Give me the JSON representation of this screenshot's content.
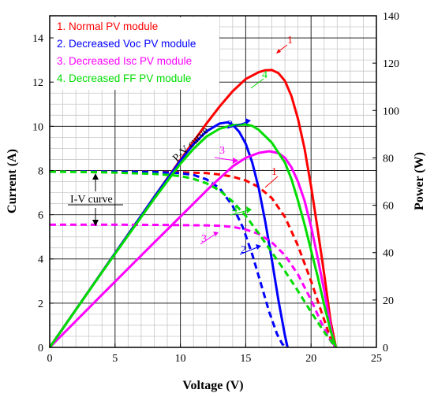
{
  "chart_data": {
    "type": "line",
    "xlabel": "Voltage (V)",
    "ylabel_left": "Current (A)",
    "ylabel_right": "Power (W)",
    "xlim": [
      0,
      25
    ],
    "ylim_left": [
      0,
      15
    ],
    "ylim_right": [
      0,
      140
    ],
    "x_ticks": [
      "0",
      "5",
      "10",
      "15",
      "20",
      "25"
    ],
    "y_left_ticks": [
      "0",
      "2",
      "4",
      "6",
      "8",
      "10",
      "12",
      "14"
    ],
    "y_right_ticks": [
      "0",
      "20",
      "40",
      "60",
      "80",
      "100",
      "120",
      "140"
    ],
    "grid": true,
    "legend_position": "top-left",
    "legend": [
      {
        "label": "1. Normal PV module",
        "color": "#ff0000"
      },
      {
        "label": "2. Decreased Voc PV module",
        "color": "#0000ff"
      },
      {
        "label": "3. Decreased Isc PV module",
        "color": "#ff00ff"
      },
      {
        "label": "4. Decreased FF PV module",
        "color": "#00dd00"
      }
    ],
    "annotations": {
      "pv_curve": "P-V curve",
      "iv_curve": "I-V curve",
      "markers": [
        "1",
        "2",
        "3",
        "4"
      ]
    },
    "series": [
      {
        "curve": "I-V",
        "marker": "1",
        "color": "#ff0000",
        "points": [
          [
            0,
            7.95
          ],
          [
            4,
            7.95
          ],
          [
            8,
            7.94
          ],
          [
            10,
            7.92
          ],
          [
            12,
            7.88
          ],
          [
            13,
            7.82
          ],
          [
            14,
            7.72
          ],
          [
            15,
            7.55
          ],
          [
            16,
            7.25
          ],
          [
            17,
            6.75
          ],
          [
            18,
            5.9
          ],
          [
            19,
            4.6
          ],
          [
            20,
            3.0
          ],
          [
            20.8,
            1.6
          ],
          [
            21.5,
            0.4
          ],
          [
            21.9,
            0
          ]
        ]
      },
      {
        "curve": "P-V",
        "marker": "1",
        "color": "#ff0000",
        "points": [
          [
            0,
            0
          ],
          [
            4,
            31.8
          ],
          [
            8,
            63.5
          ],
          [
            10,
            79.2
          ],
          [
            12,
            94.5
          ],
          [
            13,
            101.7
          ],
          [
            14,
            108.1
          ],
          [
            15,
            113.3
          ],
          [
            16,
            116.2
          ],
          [
            16.5,
            117.0
          ],
          [
            17,
            117.1
          ],
          [
            17.5,
            115.8
          ],
          [
            18,
            112.5
          ],
          [
            18.5,
            106
          ],
          [
            19,
            96.5
          ],
          [
            19.5,
            84
          ],
          [
            20,
            68
          ],
          [
            20.5,
            50
          ],
          [
            21,
            31
          ],
          [
            21.5,
            11
          ],
          [
            21.9,
            0
          ]
        ]
      },
      {
        "curve": "I-V",
        "marker": "2",
        "color": "#0000ff",
        "points": [
          [
            0,
            7.95
          ],
          [
            4,
            7.95
          ],
          [
            8,
            7.93
          ],
          [
            10,
            7.88
          ],
          [
            11,
            7.8
          ],
          [
            12,
            7.6
          ],
          [
            13,
            7.2
          ],
          [
            14,
            6.4
          ],
          [
            14.8,
            5.4
          ],
          [
            15.5,
            4.2
          ],
          [
            16.2,
            2.8
          ],
          [
            16.8,
            1.6
          ],
          [
            17.4,
            0.6
          ],
          [
            17.8,
            0.15
          ],
          [
            18.1,
            0
          ]
        ]
      },
      {
        "curve": "P-V",
        "marker": "2",
        "color": "#0000ff",
        "points": [
          [
            0,
            0
          ],
          [
            4,
            31.8
          ],
          [
            8,
            63.5
          ],
          [
            10,
            78.8
          ],
          [
            11,
            85.8
          ],
          [
            12,
            91.2
          ],
          [
            13,
            94.5
          ],
          [
            13.6,
            95.0
          ],
          [
            14,
            94.0
          ],
          [
            14.5,
            91
          ],
          [
            15,
            86
          ],
          [
            15.5,
            78
          ],
          [
            16,
            67
          ],
          [
            16.5,
            53
          ],
          [
            17,
            37
          ],
          [
            17.5,
            20
          ],
          [
            18,
            5
          ],
          [
            18.2,
            0
          ]
        ]
      },
      {
        "curve": "I-V",
        "marker": "3",
        "color": "#ff00ff",
        "points": [
          [
            0,
            5.55
          ],
          [
            4,
            5.55
          ],
          [
            8,
            5.54
          ],
          [
            10,
            5.53
          ],
          [
            12,
            5.52
          ],
          [
            13,
            5.5
          ],
          [
            14,
            5.45
          ],
          [
            15,
            5.33
          ],
          [
            16,
            5.13
          ],
          [
            17,
            4.75
          ],
          [
            18,
            4.17
          ],
          [
            19,
            3.3
          ],
          [
            20,
            2.15
          ],
          [
            20.8,
            1.1
          ],
          [
            21.5,
            0.3
          ],
          [
            21.8,
            0
          ]
        ]
      },
      {
        "curve": "P-V",
        "marker": "3",
        "color": "#ff00ff",
        "points": [
          [
            0,
            0
          ],
          [
            4,
            22.2
          ],
          [
            8,
            44.3
          ],
          [
            10,
            55.2
          ],
          [
            12,
            66.2
          ],
          [
            13,
            71.4
          ],
          [
            14,
            76.4
          ],
          [
            15,
            80.0
          ],
          [
            16,
            82.1
          ],
          [
            16.8,
            82.8
          ],
          [
            17.5,
            82.0
          ],
          [
            18,
            80.0
          ],
          [
            18.5,
            76
          ],
          [
            19,
            70
          ],
          [
            19.5,
            62
          ],
          [
            20,
            51
          ],
          [
            20.5,
            38
          ],
          [
            21,
            24
          ],
          [
            21.5,
            9
          ],
          [
            21.8,
            0
          ]
        ]
      },
      {
        "curve": "I-V",
        "marker": "4",
        "color": "#00dd00",
        "points": [
          [
            0,
            7.95
          ],
          [
            4,
            7.92
          ],
          [
            8,
            7.85
          ],
          [
            10,
            7.75
          ],
          [
            11,
            7.62
          ],
          [
            12,
            7.42
          ],
          [
            13,
            7.1
          ],
          [
            14,
            6.6
          ],
          [
            15,
            5.95
          ],
          [
            16,
            5.15
          ],
          [
            17,
            4.3
          ],
          [
            18,
            3.45
          ],
          [
            19,
            2.55
          ],
          [
            20,
            1.6
          ],
          [
            21,
            0.7
          ],
          [
            21.9,
            0
          ]
        ]
      },
      {
        "curve": "P-V",
        "marker": "4",
        "color": "#00dd00",
        "points": [
          [
            0,
            0
          ],
          [
            4,
            31.7
          ],
          [
            8,
            62.8
          ],
          [
            10,
            77.5
          ],
          [
            11,
            83.8
          ],
          [
            12,
            89.0
          ],
          [
            13,
            92.3
          ],
          [
            14,
            93.8
          ],
          [
            15,
            94.1
          ],
          [
            15.5,
            93.5
          ],
          [
            16,
            91.8
          ],
          [
            17,
            86.4
          ],
          [
            18,
            78
          ],
          [
            18.5,
            71
          ],
          [
            19,
            62
          ],
          [
            19.5,
            52
          ],
          [
            20,
            41
          ],
          [
            20.5,
            30
          ],
          [
            21,
            18
          ],
          [
            21.5,
            7
          ],
          [
            21.9,
            0
          ]
        ]
      }
    ]
  }
}
